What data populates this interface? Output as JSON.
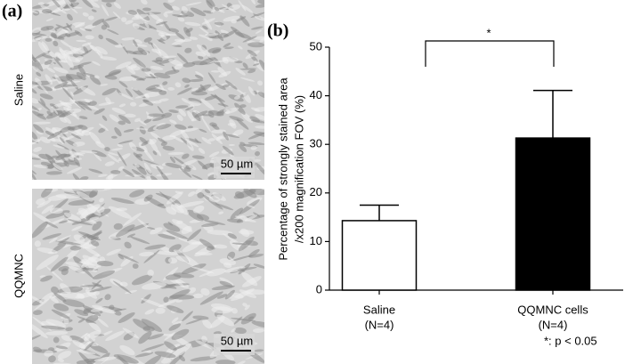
{
  "figure": {
    "panel_a": {
      "label": "(a)",
      "images": [
        {
          "label": "Saline",
          "scale_bar": "50 µm"
        },
        {
          "label": "QQMNC",
          "scale_bar": "50 µm"
        }
      ]
    }
  },
  "chart_data": {
    "type": "bar",
    "panel_label": "(b)",
    "ylabel": [
      "Percentage of strongly stained area",
      "/x200 magnification FOV (%)"
    ],
    "categories": [
      "Saline",
      "QQMNC cells"
    ],
    "category_notes": [
      "(N=4)",
      "(N=4)"
    ],
    "values": [
      14.3,
      31.3
    ],
    "errors": [
      3.2,
      9.8
    ],
    "colors": [
      "#ffffff",
      "#000000"
    ],
    "ylim": [
      0,
      50
    ],
    "yticks": [
      0,
      10,
      20,
      30,
      40,
      50
    ],
    "significance": {
      "label": "*",
      "note": "*: p < 0.05"
    }
  }
}
